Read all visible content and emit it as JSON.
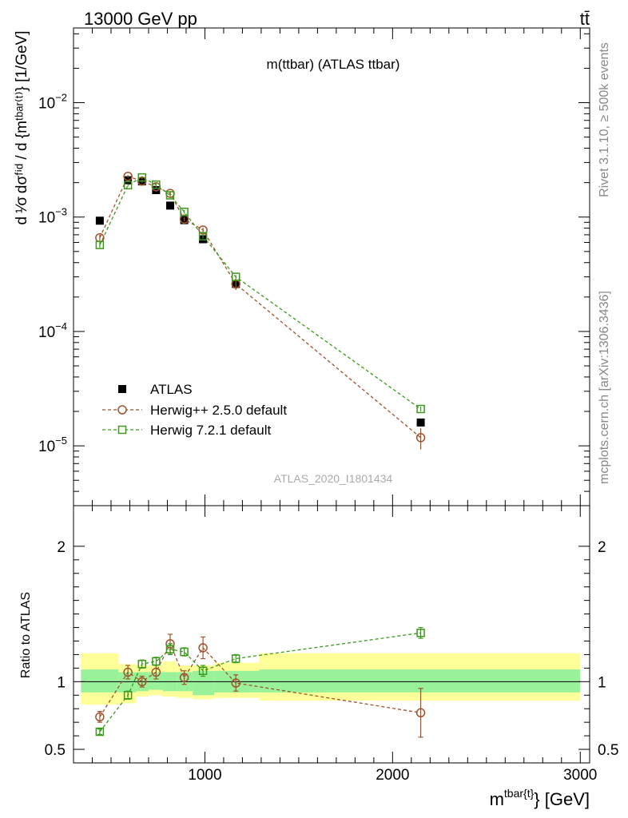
{
  "header": {
    "left": "13000 GeV pp",
    "right": "tt̄"
  },
  "side_labels": {
    "rivet": "Rivet 3.1.10, ≥ 500k events",
    "mcplots": "mcplots.cern.ch [arXiv:1306.3436]"
  },
  "chart_data": [
    {
      "type": "line",
      "panel": "main",
      "title": "m(ttbar) (ATLAS ttbar)",
      "watermark": "ATLAS_2020_I1801434",
      "xlabel": "m^{tbar{t}} [GeV]",
      "ylabel": "d 1/σ dσ^{fid} / d {m^{tbar{t}}} [1/GeV]",
      "yscale": "log",
      "xlim": [
        300,
        3050
      ],
      "ylim": [
        3e-06,
        0.045
      ],
      "ytick_labels": [
        "10^{-5}",
        "10^{-4}",
        "10^{-3}",
        "10^{-2}"
      ],
      "ytick_values": [
        1e-05,
        0.0001,
        0.001,
        0.01
      ],
      "legend_position": "bottom-left",
      "x": [
        440,
        590,
        665,
        740,
        815,
        890,
        990,
        1165,
        2150
      ],
      "series": [
        {
          "name": "ATLAS",
          "marker": "filled-square",
          "color": "#000000",
          "values": [
            0.00093,
            0.0021,
            0.00205,
            0.00172,
            0.00126,
            0.00094,
            0.00064,
            0.00026,
            1.6e-05
          ]
        },
        {
          "name": "Herwig++ 2.5.0 default",
          "marker": "open-circle",
          "color": "#a0522d",
          "values": [
            0.00066,
            0.00227,
            0.00206,
            0.00184,
            0.00161,
            0.00096,
            0.00077,
            0.00026,
            1.18e-05
          ],
          "errors": [
            4e-05,
            6e-05,
            6e-05,
            5e-05,
            5e-05,
            4e-05,
            4e-05,
            3e-05,
            2.5e-06
          ]
        },
        {
          "name": "Herwig 7.2.1 default",
          "marker": "open-square",
          "color": "#3a9a1a",
          "values": [
            0.00057,
            0.0019,
            0.00222,
            0.00192,
            0.00155,
            0.00111,
            0.00068,
            0.0003,
            2.1e-05
          ],
          "errors": [
            3e-05,
            5e-05,
            6e-05,
            5e-05,
            4e-05,
            4e-05,
            3e-05,
            1e-05,
            1e-06
          ]
        }
      ]
    },
    {
      "type": "line",
      "panel": "ratio",
      "ylabel": "Ratio to ATLAS",
      "xlabel": "m^{tbar{t}} [GeV]",
      "xlim": [
        300,
        3050
      ],
      "ylim": [
        0.4,
        2.3
      ],
      "ytick_labels": [
        "0.5",
        "1",
        "2"
      ],
      "ytick_values": [
        0.5,
        1,
        2
      ],
      "xtick_labels": [
        "1000",
        "2000",
        "3000"
      ],
      "xtick_values": [
        1000,
        2000,
        3000
      ],
      "bands": {
        "edges": [
          340,
          540,
          635,
          700,
          775,
          850,
          935,
          1050,
          1290,
          3000
        ],
        "inner_low": [
          0.92,
          0.92,
          0.93,
          0.94,
          0.93,
          0.93,
          0.9,
          0.92,
          0.92
        ],
        "inner_high": [
          1.09,
          1.07,
          1.07,
          1.07,
          1.07,
          1.07,
          1.08,
          1.08,
          1.09
        ],
        "outer_low": [
          0.83,
          0.84,
          0.89,
          0.9,
          0.89,
          0.88,
          0.87,
          0.88,
          0.86
        ],
        "outer_high": [
          1.21,
          1.13,
          1.12,
          1.12,
          1.15,
          1.12,
          1.12,
          1.14,
          1.21
        ],
        "inner_color": "#99f299",
        "outer_color": "#ffff99"
      },
      "x": [
        440,
        590,
        665,
        740,
        815,
        890,
        990,
        1165,
        2150
      ],
      "series": [
        {
          "name": "Herwig++ 2.5.0 default",
          "color": "#a0522d",
          "values": [
            0.74,
            1.07,
            1.0,
            1.07,
            1.28,
            1.03,
            1.25,
            0.99,
            0.77
          ],
          "errors": [
            0.04,
            0.05,
            0.04,
            0.05,
            0.07,
            0.05,
            0.08,
            0.06,
            0.18
          ]
        },
        {
          "name": "Herwig 7.2.1 default",
          "color": "#3a9a1a",
          "values": [
            0.63,
            0.9,
            1.13,
            1.15,
            1.24,
            1.22,
            1.08,
            1.17,
            1.36
          ],
          "errors": [
            0.02,
            0.03,
            0.03,
            0.03,
            0.04,
            0.03,
            0.04,
            0.03,
            0.04
          ]
        }
      ]
    }
  ]
}
